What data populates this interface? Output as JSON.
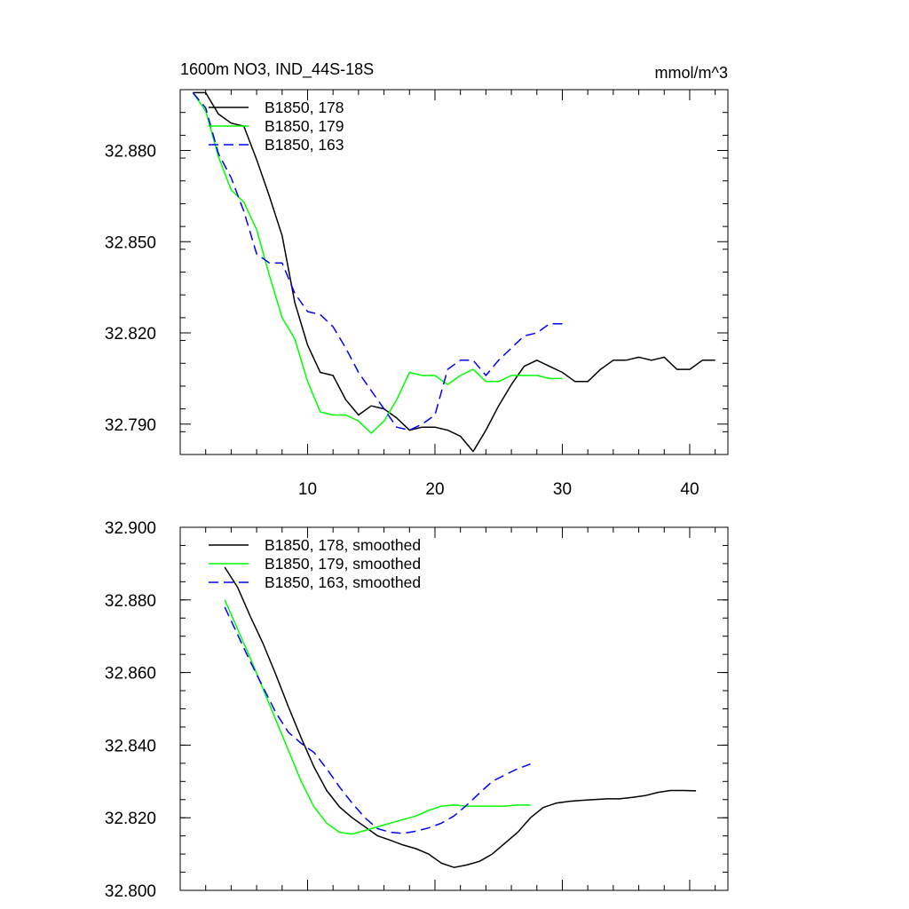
{
  "chart_data": [
    {
      "type": "line",
      "title_left": "1600m NO3, IND_44S-18S",
      "title_right": "mmol/m^3",
      "xlabel": "",
      "ylabel": "",
      "xlim": [
        0,
        43
      ],
      "ylim": [
        32.78,
        32.9
      ],
      "x_ticks": [
        10,
        20,
        30,
        40
      ],
      "x_tick_labels": [
        "10",
        "20",
        "30",
        "40"
      ],
      "y_ticks": [
        32.79,
        32.82,
        32.85,
        32.88
      ],
      "y_tick_labels": [
        "32.790",
        "32.820",
        "32.850",
        "32.880"
      ],
      "legend": "top-left",
      "series": [
        {
          "name": "B1850, 178",
          "color": "#000000",
          "dash": "solid",
          "x": [
            1,
            2,
            3,
            4,
            5,
            6,
            7,
            8,
            9,
            10,
            11,
            12,
            13,
            14,
            15,
            16,
            17,
            18,
            19,
            20,
            21,
            22,
            23,
            24,
            25,
            26,
            27,
            28,
            29,
            30,
            31,
            32,
            33,
            34,
            35,
            36,
            37,
            38,
            39,
            40,
            41,
            42
          ],
          "y": [
            32.899,
            32.899,
            32.892,
            32.889,
            32.888,
            32.877,
            32.865,
            32.852,
            32.83,
            32.816,
            32.807,
            32.806,
            32.798,
            32.793,
            32.796,
            32.795,
            32.792,
            32.788,
            32.789,
            32.789,
            32.788,
            32.786,
            32.781,
            32.788,
            32.796,
            32.803,
            32.809,
            32.811,
            32.809,
            32.807,
            32.804,
            32.804,
            32.808,
            32.811,
            32.811,
            32.812,
            32.811,
            32.812,
            32.808,
            32.808,
            32.811,
            32.811
          ]
        },
        {
          "name": "B1850, 179",
          "color": "#00ff00",
          "dash": "solid",
          "x": [
            1,
            2,
            3,
            4,
            5,
            6,
            7,
            8,
            9,
            10,
            11,
            12,
            13,
            14,
            15,
            16,
            17,
            18,
            19,
            20,
            21,
            22,
            23,
            24,
            25,
            26,
            27,
            28,
            29,
            30
          ],
          "y": [
            32.899,
            32.893,
            32.878,
            32.867,
            32.863,
            32.854,
            32.839,
            32.825,
            32.818,
            32.804,
            32.794,
            32.793,
            32.793,
            32.791,
            32.787,
            32.791,
            32.798,
            32.807,
            32.806,
            32.806,
            32.803,
            32.806,
            32.808,
            32.804,
            32.804,
            32.806,
            32.806,
            32.806,
            32.805,
            32.805
          ]
        },
        {
          "name": "B1850, 163",
          "color": "#0000ff",
          "dash": "dashed",
          "x": [
            1,
            2,
            3,
            4,
            5,
            6,
            7,
            8,
            9,
            10,
            11,
            12,
            13,
            14,
            15,
            16,
            17,
            18,
            19,
            20,
            21,
            22,
            23,
            24,
            25,
            26,
            27,
            28,
            29,
            30
          ],
          "y": [
            32.899,
            32.894,
            32.879,
            32.871,
            32.86,
            32.846,
            32.843,
            32.843,
            32.833,
            32.827,
            32.826,
            32.822,
            32.815,
            32.807,
            32.801,
            32.795,
            32.789,
            32.788,
            32.79,
            32.793,
            32.808,
            32.811,
            32.811,
            32.806,
            32.811,
            32.815,
            32.819,
            32.82,
            32.823,
            32.823
          ]
        }
      ]
    },
    {
      "type": "line",
      "xlabel": "",
      "ylabel": "",
      "xlim": [
        0,
        43
      ],
      "ylim": [
        32.8,
        32.9
      ],
      "x_ticks": [
        10,
        20,
        30,
        40
      ],
      "y_ticks": [
        32.8,
        32.82,
        32.84,
        32.86,
        32.88,
        32.9
      ],
      "y_tick_labels": [
        "32.800",
        "32.820",
        "32.840",
        "32.860",
        "32.880",
        "32.900"
      ],
      "legend": "top-left",
      "series": [
        {
          "name": "B1850, 178, smoothed",
          "color": "#000000",
          "dash": "solid",
          "x": [
            3.5,
            4.5,
            5.5,
            6.5,
            7.5,
            8.5,
            9.5,
            10.5,
            11.5,
            12.5,
            13.5,
            14.5,
            15.5,
            16.5,
            17.5,
            18.5,
            19.5,
            20.5,
            21.5,
            22.5,
            23.5,
            24.5,
            25.5,
            26.5,
            27.5,
            28.5,
            29.5,
            30.5,
            31.5,
            32.5,
            33.5,
            34.5,
            35.5,
            36.5,
            37.5,
            38.5,
            39.5,
            40.5
          ],
          "y": [
            32.889,
            32.8835,
            32.8755,
            32.868,
            32.8595,
            32.8505,
            32.842,
            32.834,
            32.8275,
            32.823,
            32.82,
            32.8175,
            32.815,
            32.8138,
            32.8125,
            32.8115,
            32.81,
            32.8075,
            32.8063,
            32.807,
            32.808,
            32.81,
            32.813,
            32.816,
            32.82,
            32.8228,
            32.824,
            32.8245,
            32.8248,
            32.825,
            32.8252,
            32.8252,
            32.8256,
            32.8261,
            32.827,
            32.8275,
            32.8275,
            32.8274
          ]
        },
        {
          "name": "B1850, 179, smoothed",
          "color": "#00ff00",
          "dash": "solid",
          "x": [
            3.5,
            4.5,
            5.5,
            6.5,
            7.5,
            8.5,
            9.5,
            10.5,
            11.5,
            12.5,
            13.5,
            14.5,
            15.5,
            16.5,
            17.5,
            18.5,
            19.5,
            20.5,
            21.5,
            22.5,
            23.5,
            24.5,
            25.5,
            26.5,
            27.5
          ],
          "y": [
            32.88,
            32.872,
            32.864,
            32.8555,
            32.847,
            32.8385,
            32.83,
            32.823,
            32.8185,
            32.816,
            32.8155,
            32.8165,
            32.8175,
            32.8185,
            32.8195,
            32.8205,
            32.822,
            32.8232,
            32.8235,
            32.8232,
            32.8232,
            32.8232,
            32.8232,
            32.8235,
            32.8235
          ]
        },
        {
          "name": "B1850, 163, smoothed",
          "color": "#0000ff",
          "dash": "dashed",
          "x": [
            3.5,
            4.5,
            5.5,
            6.5,
            7.5,
            8.5,
            9.5,
            10.5,
            11.5,
            12.5,
            13.5,
            14.5,
            15.5,
            16.5,
            17.5,
            18.5,
            19.5,
            20.5,
            21.5,
            22.5,
            23.5,
            24.5,
            25.5,
            26.5,
            27.5
          ],
          "y": [
            32.878,
            32.8705,
            32.863,
            32.856,
            32.849,
            32.8435,
            32.8405,
            32.838,
            32.8335,
            32.8285,
            32.824,
            32.82,
            32.817,
            32.816,
            32.8157,
            32.8163,
            32.8172,
            32.8185,
            32.8205,
            32.8235,
            32.8268,
            32.83,
            32.8318,
            32.8335,
            32.8348
          ]
        }
      ]
    }
  ]
}
